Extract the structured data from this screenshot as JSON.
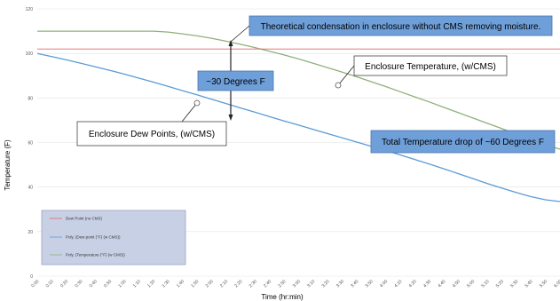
{
  "colors": {
    "temperature_line": "#8fb07a",
    "dew_point_line": "#5b9bd5",
    "threshold_line": "#e8636b",
    "callout_blue": "#6f9fd8",
    "gridline": "#e2e2e2",
    "legend_bg": "#c8d0e6"
  },
  "chart_data": {
    "type": "line",
    "title": "",
    "xlabel": "Time (hr:min)",
    "ylabel": "Temperature (F)",
    "x": [
      "0:00",
      "0:10",
      "0:20",
      "0:30",
      "0:40",
      "0:50",
      "1:00",
      "1:10",
      "1:20",
      "1:30",
      "1:40",
      "1:50",
      "2:00",
      "2:10",
      "2:20",
      "2:30",
      "2:40",
      "2:50",
      "3:00",
      "3:10",
      "3:20",
      "3:30",
      "3:40",
      "3:50",
      "4:00",
      "4:10",
      "4:20",
      "4:30",
      "4:40",
      "4:50",
      "5:00",
      "5:10",
      "5:20",
      "5:30",
      "5:40",
      "5:50",
      "6:00"
    ],
    "ylim": [
      0,
      120
    ],
    "grid": "horizontal",
    "series": [
      {
        "name": "Poly. (Temperature (°F) (w CMS))",
        "color_key": "temperature_line",
        "values": [
          110,
          110,
          110,
          110,
          110,
          110,
          110,
          110,
          110,
          109.6,
          108.8,
          107.9,
          106.8,
          105.5,
          104.1,
          102.6,
          101,
          99.3,
          97.5,
          95.6,
          93.6,
          91.6,
          89.5,
          87.3,
          85.1,
          82.8,
          80.5,
          78.2,
          75.8,
          73.4,
          71,
          68.6,
          66.2,
          63.8,
          61.4,
          59,
          57
        ]
      },
      {
        "name": "Poly. (Dew point (°F) (w CMS))",
        "color_key": "dew_point_line",
        "values": [
          100,
          98.6,
          97.1,
          95.6,
          94,
          92.4,
          90.7,
          88.9,
          87.1,
          85.2,
          83.3,
          81.4,
          79.4,
          77.5,
          75.5,
          73.6,
          71.6,
          69.7,
          67.8,
          65.9,
          64,
          62.1,
          60.2,
          58.3,
          56.4,
          54.4,
          52.4,
          50.3,
          48.2,
          46,
          43.8,
          41.6,
          39.5,
          37.5,
          35.7,
          34.3,
          33.5
        ]
      },
      {
        "name": "Dew Point (no CMS)",
        "color_key": "threshold_line",
        "values": [
          102,
          102,
          102,
          102,
          102,
          102,
          102,
          102,
          102,
          102,
          102,
          102,
          102,
          102,
          102,
          102,
          102,
          102,
          102,
          102,
          102,
          102,
          102,
          102,
          102,
          102,
          102,
          102,
          102,
          102,
          102,
          102,
          102,
          102,
          102,
          102,
          102
        ]
      }
    ],
    "annotations": [
      "Theoretical condensation in enclosure without CMS removing moisture.",
      "Enclosure Temperature, (w/CMS)",
      "~30 Degrees F",
      "Enclosure Dew Points, (w/CMS)",
      "Total Temperature drop of ~60 Degrees F"
    ],
    "legend": {
      "position": "bottom-left",
      "entries": [
        "Dew Point (no CMS)",
        "Poly. (Dew point (°F) (w CMS))",
        "Poly. (Temperature (°F) (w CMS))"
      ]
    }
  }
}
